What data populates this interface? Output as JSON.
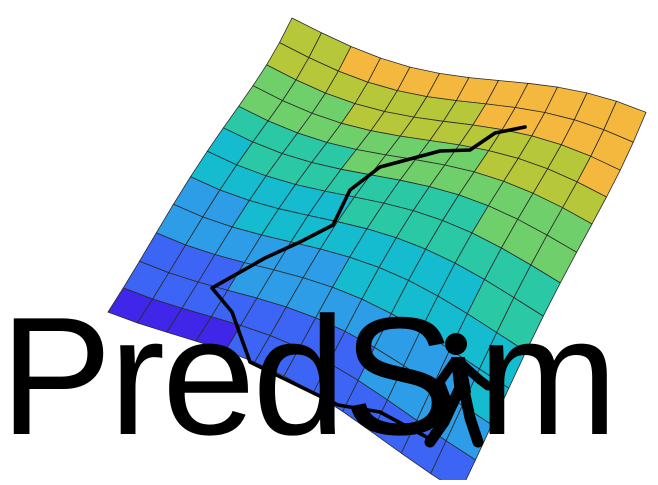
{
  "logo": {
    "word_left": "PredS",
    "word_right": "m",
    "glyph_icon": "walking-person-icon",
    "text_color": "#000000"
  },
  "surface": {
    "colormap": [
      "#3f26e8",
      "#3c65f5",
      "#2c9de6",
      "#15bcd0",
      "#2ac8a5",
      "#6fcf6a",
      "#b6c73a",
      "#f5b83f"
    ],
    "mesh_line_color": "#2a2a2a",
    "trajectory_color": "#000000"
  }
}
